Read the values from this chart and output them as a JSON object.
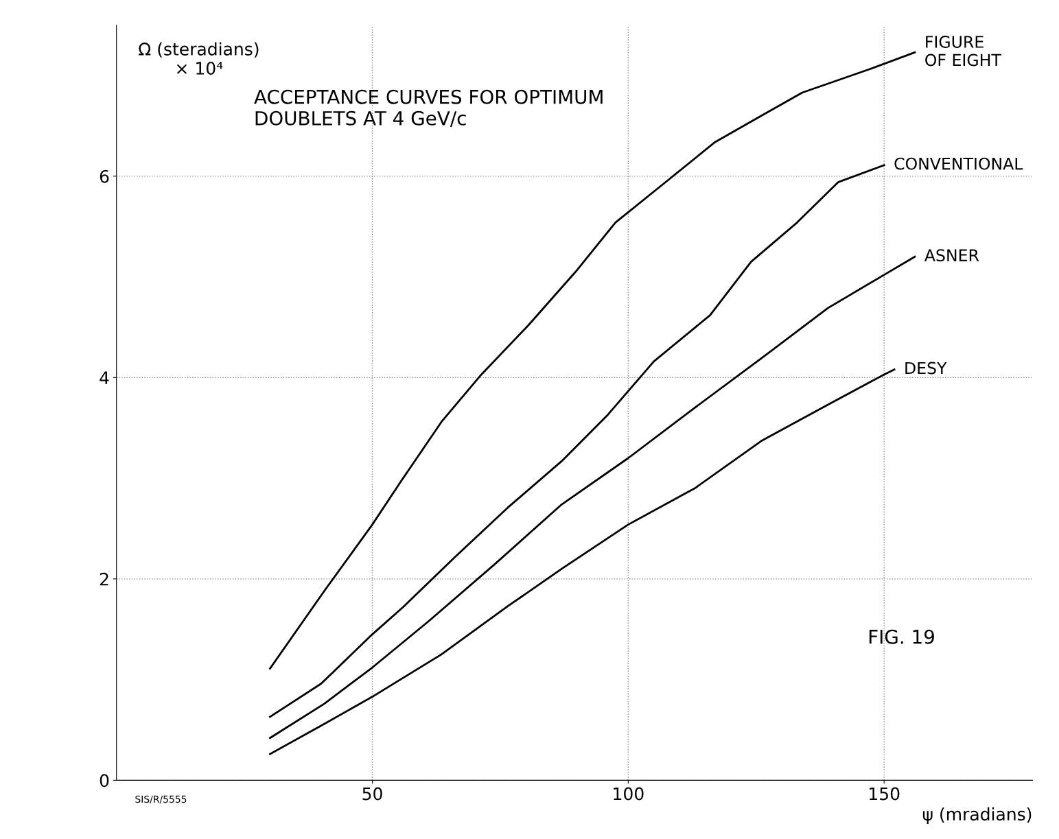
{
  "chart_data": {
    "type": "line",
    "title": "ACCEPTANCE CURVES FOR OPTIMUM\nDOUBLETS AT 4 GeV/c",
    "xlabel": "ψ (mradians)",
    "ylabel": "Ω (steradians)\n× 10⁴",
    "annotations": [
      "FIG. 19",
      "SIS/R/5555"
    ],
    "series": [
      {
        "name": "FIGURE\nOF EIGHT",
        "color": "#000000",
        "x": [
          30,
          40.6,
          50,
          55.6,
          63.5,
          71.3,
          80.5,
          89.7,
          97.5,
          108,
          117,
          126,
          134,
          147,
          156
        ],
        "values": [
          1.11,
          1.88,
          2.54,
          2.97,
          3.56,
          4.03,
          4.52,
          5.05,
          5.54,
          5.97,
          6.34,
          6.6,
          6.83,
          7.06,
          7.23
        ]
      },
      {
        "name": "CONVENTIONAL",
        "color": "#000000",
        "x": [
          30,
          40,
          50,
          56,
          66,
          76.5,
          87,
          96,
          105,
          116,
          124,
          133,
          141,
          150
        ],
        "values": [
          0.63,
          0.96,
          1.45,
          1.72,
          2.21,
          2.71,
          3.17,
          3.63,
          4.16,
          4.62,
          5.15,
          5.54,
          5.94,
          6.11
        ]
      },
      {
        "name": "ASNER",
        "color": "#000000",
        "x": [
          30,
          40.6,
          50,
          61,
          74,
          87,
          100,
          113,
          126,
          139,
          150,
          156
        ],
        "values": [
          0.42,
          0.76,
          1.12,
          1.58,
          2.15,
          2.74,
          3.2,
          3.7,
          4.19,
          4.69,
          5.02,
          5.2
        ]
      },
      {
        "name": "DESY",
        "color": "#000000",
        "x": [
          30,
          40.6,
          50,
          63.5,
          76.5,
          87,
          100,
          113,
          126,
          139,
          150,
          152
        ],
        "values": [
          0.26,
          0.56,
          0.83,
          1.25,
          1.73,
          2.1,
          2.54,
          2.9,
          3.37,
          3.73,
          4.03,
          4.08
        ]
      }
    ],
    "xlim": [
      0,
      179
    ],
    "ylim": [
      0,
      7.5
    ],
    "xticks": [
      50,
      100,
      150
    ],
    "yticks": [
      0,
      2,
      4,
      6
    ],
    "grid": true
  }
}
